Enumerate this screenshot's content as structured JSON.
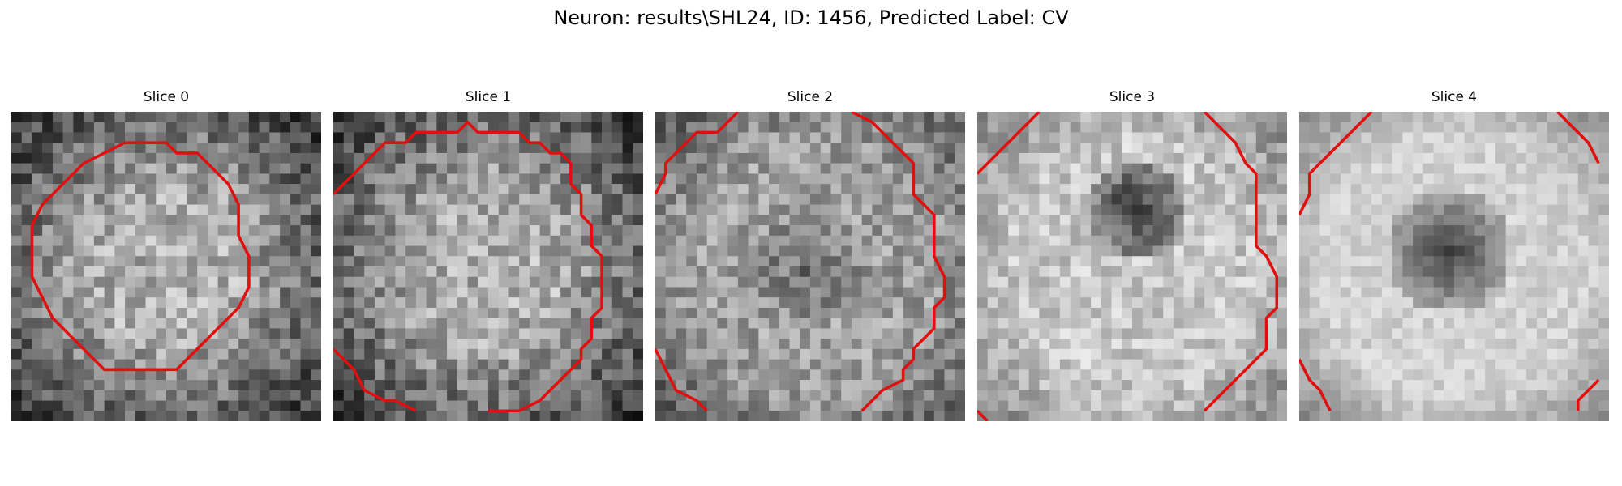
{
  "figure": {
    "title": "Neuron: results\\SHL24, ID: 1456, Predicted Label: CV",
    "contour_color": "#e01010",
    "colormap": "gray",
    "panels": [
      {
        "label": "Slice 0",
        "pattern": "bright-center",
        "seed": 11
      },
      {
        "label": "Slice 1",
        "pattern": "bright-center",
        "seed": 23
      },
      {
        "label": "Slice 2",
        "pattern": "dark-center",
        "seed": 37
      },
      {
        "label": "Slice 3",
        "pattern": "dark-center-strong",
        "seed": 51
      },
      {
        "label": "Slice 4",
        "pattern": "dark-center-smooth",
        "seed": 67
      }
    ]
  }
}
